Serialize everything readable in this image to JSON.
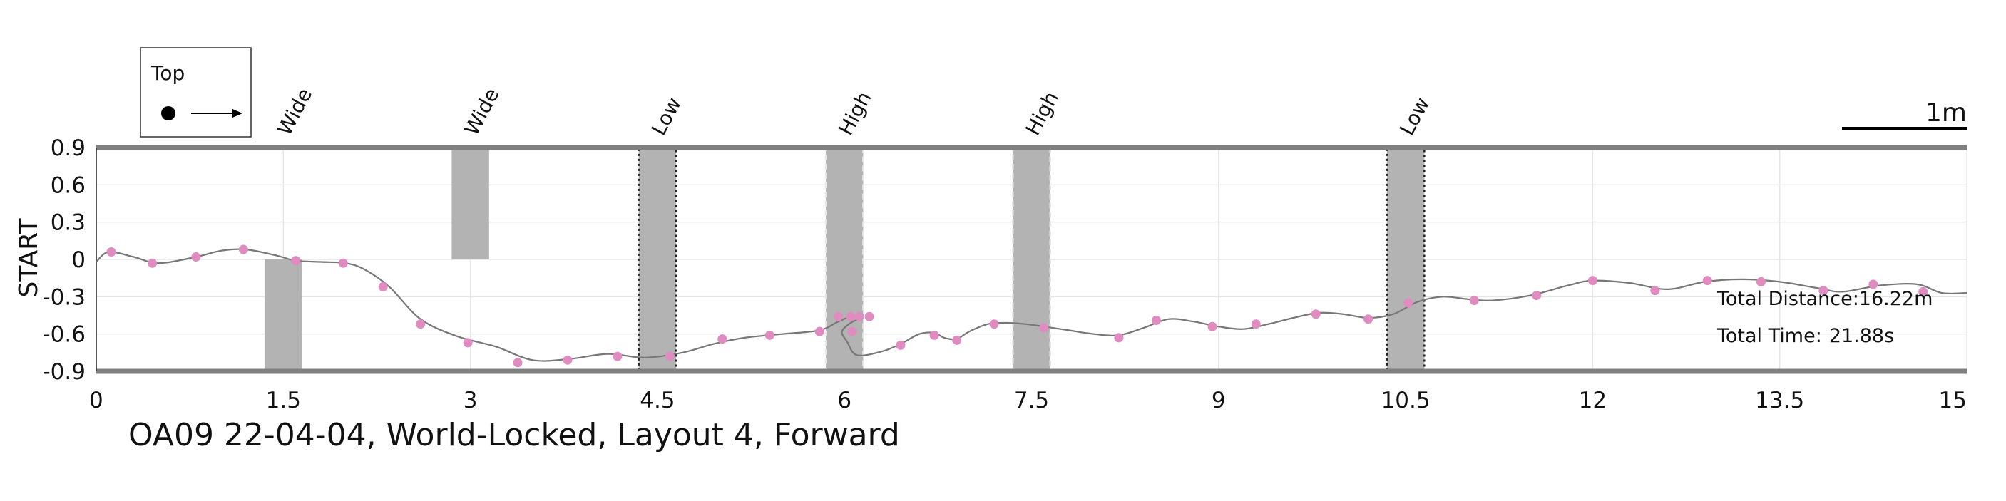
{
  "chart_data": {
    "type": "line",
    "title": "OA09 22-04-04, World-Locked, Layout 4, Forward",
    "ylabel": "START",
    "xlim": [
      0,
      15
    ],
    "ylim": [
      -0.9,
      0.9
    ],
    "xticks": [
      0,
      1.5,
      3,
      4.5,
      6,
      7.5,
      9,
      10.5,
      12,
      13.5,
      15
    ],
    "xtick_labels": [
      "0",
      "1.5",
      "3",
      "4.5",
      "6",
      "7.5",
      "9",
      "10.5",
      "12",
      "13.5",
      "15"
    ],
    "yticks": [
      0.9,
      0.6,
      0.3,
      0,
      -0.3,
      -0.6,
      -0.9
    ],
    "ytick_labels": [
      "0.9",
      "0.6",
      "0.3",
      "0",
      "-0.3",
      "-0.6",
      "-0.9"
    ],
    "grid": true,
    "legend": {
      "label": "Top",
      "placement": "top-left"
    },
    "scale_bar_label": "1m",
    "stats": [
      {
        "label": "Total Distance:",
        "value": "16.22m"
      },
      {
        "label": "Total Time:",
        "value": "21.88s"
      }
    ],
    "obstacles": [
      {
        "label": "Wide",
        "x_start": 1.35,
        "x_end": 1.65,
        "y_min": -0.9,
        "y_max": 0,
        "style": "solid"
      },
      {
        "label": "Wide",
        "x_start": 2.85,
        "x_end": 3.15,
        "y_min": 0,
        "y_max": 0.9,
        "style": "solid"
      },
      {
        "label": "Low",
        "x_start": 4.35,
        "x_end": 4.65,
        "y_min": -0.9,
        "y_max": 0.9,
        "style": "dotted-dark"
      },
      {
        "label": "High",
        "x_start": 5.85,
        "x_end": 6.15,
        "y_min": -0.9,
        "y_max": 0.9,
        "style": "dashed-light"
      },
      {
        "label": "High",
        "x_start": 7.35,
        "x_end": 7.65,
        "y_min": -0.9,
        "y_max": 0.9,
        "style": "dashed-light"
      },
      {
        "label": "Low",
        "x_start": 10.35,
        "x_end": 10.65,
        "y_min": -0.9,
        "y_max": 0.9,
        "style": "dotted-dark"
      }
    ],
    "series": [
      {
        "x": [
          0.0,
          0.1,
          0.3,
          0.5,
          0.8,
          1.0,
          1.2,
          1.45,
          1.6,
          1.8,
          2.0,
          2.15,
          2.35,
          2.6,
          2.9,
          3.2,
          3.5,
          3.8,
          4.1,
          4.4,
          4.7,
          4.95,
          5.2,
          5.5,
          5.8,
          5.95,
          6.05,
          6.1,
          6.15,
          6.12,
          6.05,
          5.98,
          6.02,
          6.1,
          6.3,
          6.45,
          6.6,
          6.72,
          6.8,
          6.9,
          7.0,
          7.15,
          7.3,
          7.45,
          7.6,
          7.8,
          8.0,
          8.2,
          8.4,
          8.6,
          8.8,
          9.0,
          9.2,
          9.4,
          9.6,
          9.8,
          10.0,
          10.2,
          10.4,
          10.6,
          10.8,
          11.0,
          11.2,
          11.5,
          11.8,
          12.0,
          12.3,
          12.6,
          12.9,
          13.2,
          13.5,
          13.8,
          14.0,
          14.3,
          14.6,
          14.8,
          15.0
        ],
        "y": [
          -0.02,
          0.06,
          0.02,
          -0.03,
          0.02,
          0.07,
          0.08,
          0.03,
          -0.01,
          -0.02,
          -0.03,
          -0.08,
          -0.22,
          -0.48,
          -0.62,
          -0.7,
          -0.81,
          -0.8,
          -0.76,
          -0.79,
          -0.75,
          -0.68,
          -0.63,
          -0.6,
          -0.57,
          -0.5,
          -0.46,
          -0.46,
          -0.47,
          -0.48,
          -0.51,
          -0.58,
          -0.66,
          -0.77,
          -0.74,
          -0.68,
          -0.6,
          -0.59,
          -0.63,
          -0.64,
          -0.58,
          -0.52,
          -0.51,
          -0.52,
          -0.54,
          -0.57,
          -0.6,
          -0.61,
          -0.55,
          -0.48,
          -0.5,
          -0.54,
          -0.56,
          -0.52,
          -0.47,
          -0.43,
          -0.44,
          -0.47,
          -0.44,
          -0.34,
          -0.3,
          -0.32,
          -0.33,
          -0.29,
          -0.21,
          -0.17,
          -0.19,
          -0.24,
          -0.18,
          -0.16,
          -0.18,
          -0.23,
          -0.26,
          -0.21,
          -0.2,
          -0.27,
          -0.27
        ]
      }
    ],
    "markers": {
      "x": [
        0.12,
        0.45,
        0.8,
        1.18,
        1.6,
        1.98,
        2.3,
        2.6,
        2.98,
        3.38,
        3.78,
        4.18,
        4.6,
        5.02,
        5.4,
        5.8,
        5.95,
        6.05,
        6.12,
        6.2,
        6.06,
        6.45,
        6.72,
        6.9,
        7.2,
        7.6,
        8.2,
        8.5,
        8.95,
        9.3,
        9.78,
        10.2,
        10.52,
        11.05,
        11.55,
        12.0,
        12.5,
        12.92,
        13.35,
        13.85,
        14.25,
        14.65
      ],
      "y": [
        0.06,
        -0.03,
        0.02,
        0.08,
        -0.01,
        -0.03,
        -0.22,
        -0.52,
        -0.67,
        -0.83,
        -0.81,
        -0.78,
        -0.78,
        -0.64,
        -0.61,
        -0.58,
        -0.46,
        -0.46,
        -0.46,
        -0.46,
        -0.58,
        -0.69,
        -0.61,
        -0.65,
        -0.52,
        -0.55,
        -0.63,
        -0.49,
        -0.54,
        -0.52,
        -0.44,
        -0.48,
        -0.35,
        -0.33,
        -0.29,
        -0.17,
        -0.25,
        -0.17,
        -0.18,
        -0.25,
        -0.2,
        -0.26
      ]
    }
  }
}
